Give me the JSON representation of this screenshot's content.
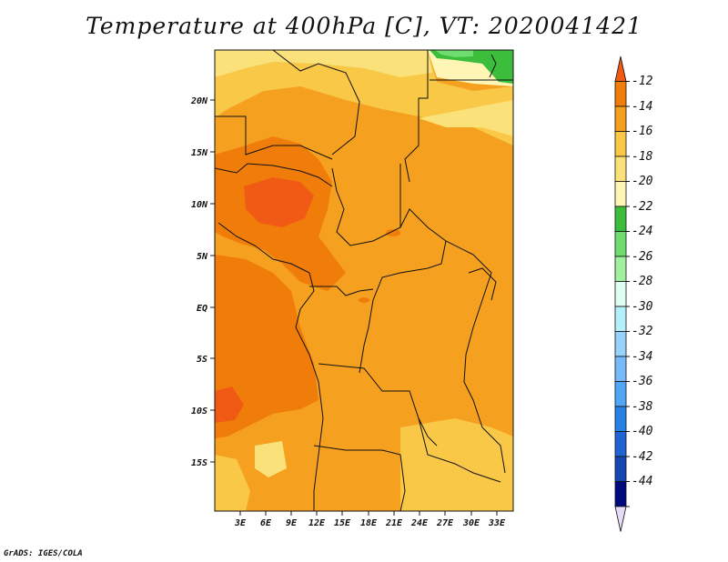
{
  "title": "Temperature at 400hPa [C], VT: 2020041421",
  "credit": "GrADS: IGES/COLA",
  "map": {
    "lat_labels": [
      "20N",
      "15N",
      "10N",
      "5N",
      "EQ",
      "5S",
      "10S",
      "15S"
    ],
    "lon_labels": [
      "3E",
      "6E",
      "9E",
      "12E",
      "15E",
      "18E",
      "21E",
      "24E",
      "27E",
      "30E",
      "33E"
    ]
  },
  "colorbar": {
    "labels": [
      "-12",
      "-14",
      "-16",
      "-18",
      "-20",
      "-22",
      "-24",
      "-26",
      "-28",
      "-30",
      "-32",
      "-34",
      "-36",
      "-38",
      "-40",
      "-42",
      "-44"
    ],
    "colors": [
      "#f05a14",
      "#f07d0a",
      "#f5a01e",
      "#f8c846",
      "#fae17a",
      "#fff5b4",
      "#3cbe3c",
      "#6edc6e",
      "#a0f0a0",
      "#e0fff0",
      "#b4f0fa",
      "#96d2fa",
      "#78b9fa",
      "#50a5f5",
      "#2882e6",
      "#1e64d2",
      "#1446b4",
      "#000a7d",
      "#e6dcf5"
    ]
  }
}
